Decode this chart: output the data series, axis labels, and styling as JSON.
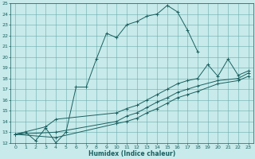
{
  "xlabel": "Humidex (Indice chaleur)",
  "bg_color": "#c8eaea",
  "grid_color": "#6aacac",
  "line_color": "#1a6060",
  "xlim": [
    -0.5,
    23.5
  ],
  "ylim": [
    12,
    25
  ],
  "xticks": [
    0,
    1,
    2,
    3,
    4,
    5,
    6,
    7,
    8,
    9,
    10,
    11,
    12,
    13,
    14,
    15,
    16,
    17,
    18,
    19,
    20,
    21,
    22,
    23
  ],
  "yticks": [
    12,
    13,
    14,
    15,
    16,
    17,
    18,
    19,
    20,
    21,
    22,
    23,
    24,
    25
  ],
  "series": [
    {
      "x": [
        0,
        1,
        2,
        3,
        4,
        5,
        6,
        7,
        8,
        9,
        10,
        11,
        12,
        13,
        14,
        15,
        16,
        17,
        18
      ],
      "y": [
        12.8,
        13.0,
        12.2,
        13.4,
        12.0,
        13.0,
        17.2,
        17.2,
        19.8,
        22.2,
        21.8,
        23.0,
        23.3,
        23.8,
        24.0,
        24.8,
        24.2,
        22.5,
        20.5
      ]
    },
    {
      "x": [
        0,
        3,
        4,
        10,
        11,
        12,
        13,
        14,
        15,
        16,
        17,
        18,
        19,
        20,
        21,
        22,
        23
      ],
      "y": [
        12.8,
        13.5,
        14.2,
        14.8,
        15.2,
        15.5,
        16.0,
        16.5,
        17.0,
        17.5,
        17.8,
        18.0,
        19.3,
        18.2,
        19.8,
        18.3,
        18.7
      ]
    },
    {
      "x": [
        0,
        4,
        10,
        11,
        12,
        13,
        14,
        15,
        16,
        17,
        18,
        20,
        22,
        23
      ],
      "y": [
        12.8,
        13.0,
        14.0,
        14.5,
        14.8,
        15.3,
        15.8,
        16.2,
        16.7,
        17.0,
        17.3,
        17.8,
        18.0,
        18.5
      ]
    },
    {
      "x": [
        0,
        4,
        10,
        11,
        12,
        13,
        14,
        15,
        16,
        17,
        18,
        20,
        22,
        23
      ],
      "y": [
        12.8,
        12.5,
        13.8,
        14.0,
        14.3,
        14.8,
        15.2,
        15.7,
        16.2,
        16.5,
        16.8,
        17.5,
        17.8,
        18.2
      ]
    }
  ]
}
